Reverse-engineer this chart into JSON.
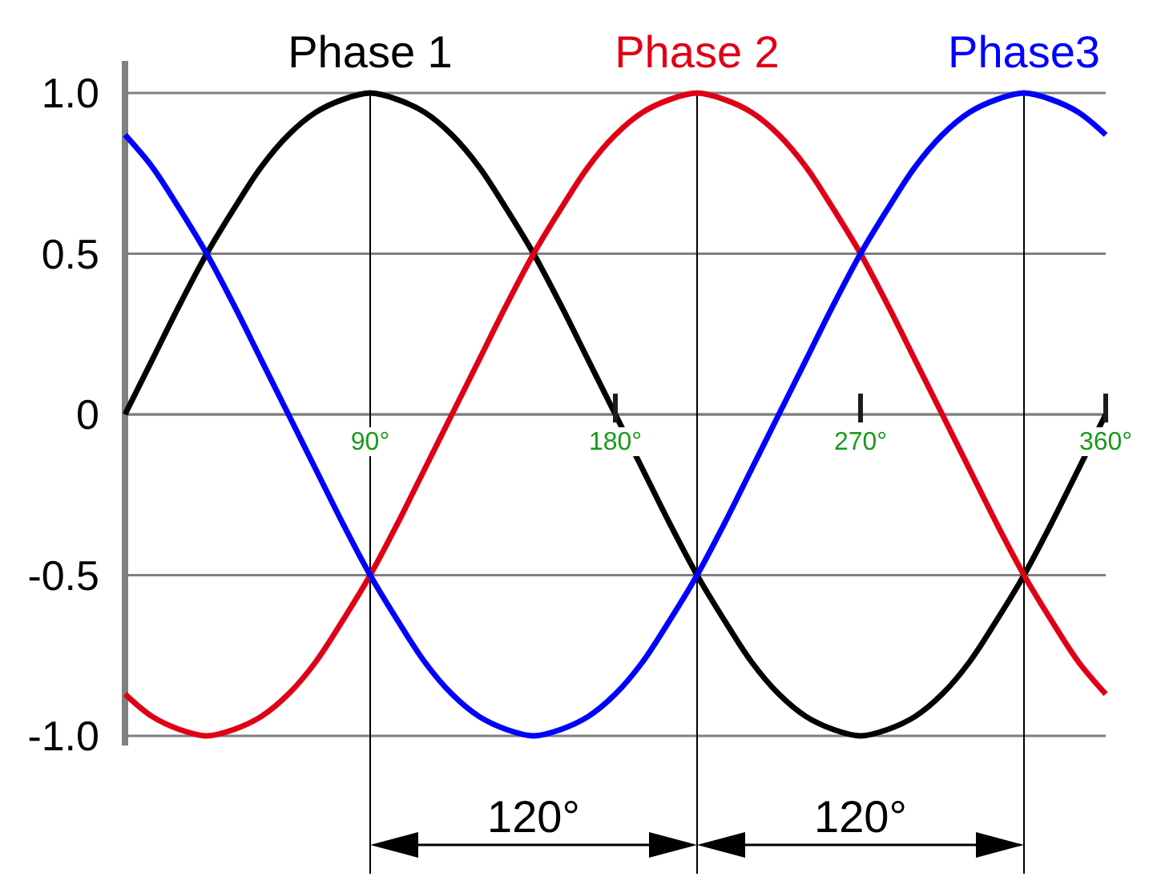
{
  "chart_data": {
    "type": "line",
    "x": [
      0,
      10,
      20,
      30,
      40,
      50,
      60,
      70,
      80,
      90,
      100,
      110,
      120,
      130,
      140,
      150,
      160,
      170,
      180,
      190,
      200,
      210,
      220,
      230,
      240,
      250,
      260,
      270,
      280,
      290,
      300,
      310,
      320,
      330,
      340,
      350,
      360
    ],
    "series": [
      {
        "name": "Phase 1",
        "color": "#000000",
        "values": [
          0,
          0.17,
          0.34,
          0.5,
          0.64,
          0.77,
          0.87,
          0.94,
          0.98,
          1,
          0.98,
          0.94,
          0.87,
          0.77,
          0.64,
          0.5,
          0.34,
          0.17,
          0,
          -0.17,
          -0.34,
          -0.5,
          -0.64,
          -0.77,
          -0.87,
          -0.94,
          -0.98,
          -1,
          -0.98,
          -0.94,
          -0.87,
          -0.77,
          -0.64,
          -0.5,
          -0.34,
          -0.17,
          0
        ]
      },
      {
        "name": "Phase 2",
        "color": "#e00016",
        "values": [
          -0.87,
          -0.94,
          -0.98,
          -1,
          -0.98,
          -0.94,
          -0.87,
          -0.77,
          -0.64,
          -0.5,
          -0.34,
          -0.17,
          0,
          0.17,
          0.34,
          0.5,
          0.64,
          0.77,
          0.87,
          0.94,
          0.98,
          1,
          0.98,
          0.94,
          0.87,
          0.77,
          0.64,
          0.5,
          0.34,
          0.17,
          0,
          -0.17,
          -0.34,
          -0.5,
          -0.64,
          -0.77,
          -0.87
        ]
      },
      {
        "name": "Phase3",
        "color": "#0000ff",
        "values": [
          0.87,
          0.77,
          0.64,
          0.5,
          0.34,
          0.17,
          0,
          -0.17,
          -0.34,
          -0.5,
          -0.64,
          -0.77,
          -0.87,
          -0.94,
          -0.98,
          -1,
          -0.98,
          -0.94,
          -0.87,
          -0.77,
          -0.64,
          -0.5,
          -0.34,
          -0.17,
          0,
          0.17,
          0.34,
          0.5,
          0.64,
          0.77,
          0.87,
          0.94,
          0.98,
          1,
          0.98,
          0.94,
          0.87
        ]
      }
    ],
    "xlim": [
      0,
      360
    ],
    "xticks": [
      {
        "value": 90,
        "label": "90°"
      },
      {
        "value": 180,
        "label": "180°"
      },
      {
        "value": 270,
        "label": "270°"
      },
      {
        "value": 360,
        "label": "360°"
      }
    ],
    "ylim": [
      -1.03,
      1.1
    ],
    "yticks": [
      {
        "value": 1,
        "label": "1.0"
      },
      0.5,
      0,
      -0.5,
      {
        "value": -1,
        "label": "-1.0"
      }
    ],
    "grid": "y",
    "legend": "top",
    "marker": "none",
    "line_style": "solid",
    "ref_lines": [
      {
        "axis": "x",
        "value": 90,
        "label": null
      },
      {
        "axis": "x",
        "value": 210,
        "label": null
      },
      {
        "axis": "x",
        "value": 330,
        "label": null
      }
    ],
    "annotations": [
      "120°",
      "120°"
    ]
  }
}
